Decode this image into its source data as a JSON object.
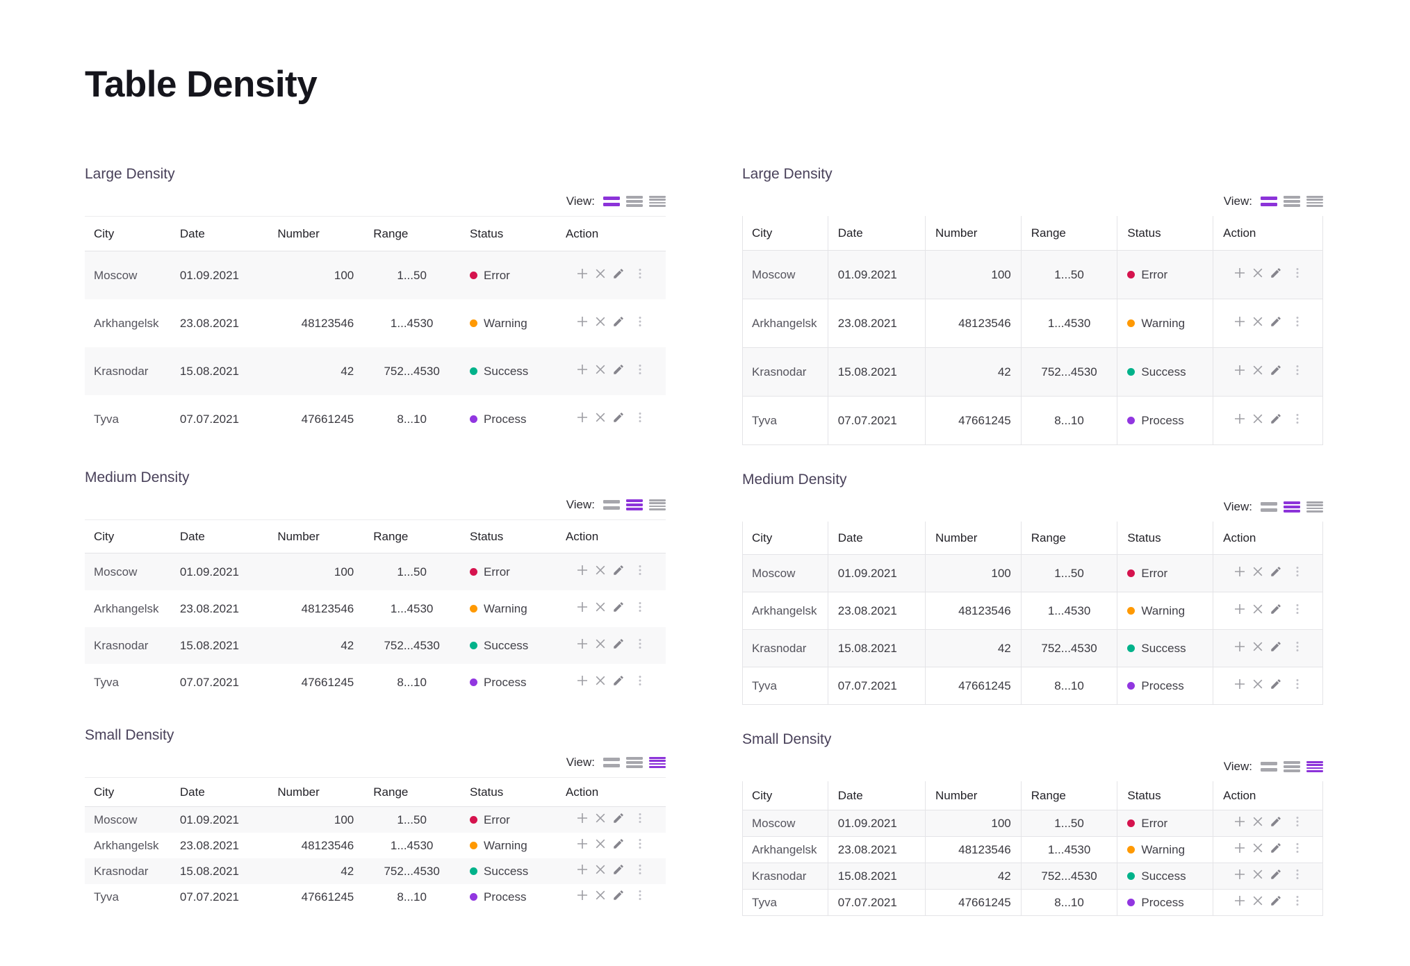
{
  "page": {
    "title": "Table Density"
  },
  "view_control": {
    "label": "View:",
    "options": [
      {
        "id": "large",
        "bars": 2
      },
      {
        "id": "medium",
        "bars": 3
      },
      {
        "id": "small",
        "bars": 4
      }
    ]
  },
  "colors": {
    "accent_purple": "#8c33d9",
    "inactive_icon_gray": "#a6a6ac",
    "status": {
      "Error": "#d5134e",
      "Warning": "#ff9902",
      "Success": "#00b28a",
      "Process": "#9136e0"
    }
  },
  "sections": [
    {
      "title": "Large Density",
      "variant": "plain",
      "density": "large"
    },
    {
      "title": "Medium Density",
      "variant": "plain",
      "density": "medium"
    },
    {
      "title": "Small Density",
      "variant": "plain",
      "density": "small"
    },
    {
      "title": "Large Density",
      "variant": "bordered",
      "density": "large"
    },
    {
      "title": "Medium Density",
      "variant": "bordered",
      "density": "medium"
    },
    {
      "title": "Small Density",
      "variant": "bordered",
      "density": "small"
    }
  ],
  "table": {
    "columns": [
      {
        "key": "city",
        "label": "City",
        "align": "left"
      },
      {
        "key": "date",
        "label": "Date",
        "align": "left"
      },
      {
        "key": "number",
        "label": "Number",
        "align": "right"
      },
      {
        "key": "range",
        "label": "Range",
        "align": "center"
      },
      {
        "key": "status",
        "label": "Status",
        "align": "left"
      },
      {
        "key": "action",
        "label": "Action",
        "align": "center"
      }
    ],
    "rows": [
      {
        "city": "Moscow",
        "date": "01.09.2021",
        "number": "100",
        "range": "1...50",
        "status": "Error"
      },
      {
        "city": "Arkhangelsk",
        "date": "23.08.2021",
        "number": "48123546",
        "range": "1...4530",
        "status": "Warning"
      },
      {
        "city": "Krasnodar",
        "date": "15.08.2021",
        "number": "42",
        "range": "752...4530",
        "status": "Success"
      },
      {
        "city": "Tyva",
        "date": "07.07.2021",
        "number": "47661245",
        "range": "8...10",
        "status": "Process"
      }
    ],
    "actions": [
      {
        "name": "add",
        "icon": "plus-icon"
      },
      {
        "name": "delete",
        "icon": "close-icon"
      },
      {
        "name": "edit",
        "icon": "pencil-icon"
      },
      {
        "name": "more",
        "icon": "kebab-menu-icon"
      }
    ]
  }
}
